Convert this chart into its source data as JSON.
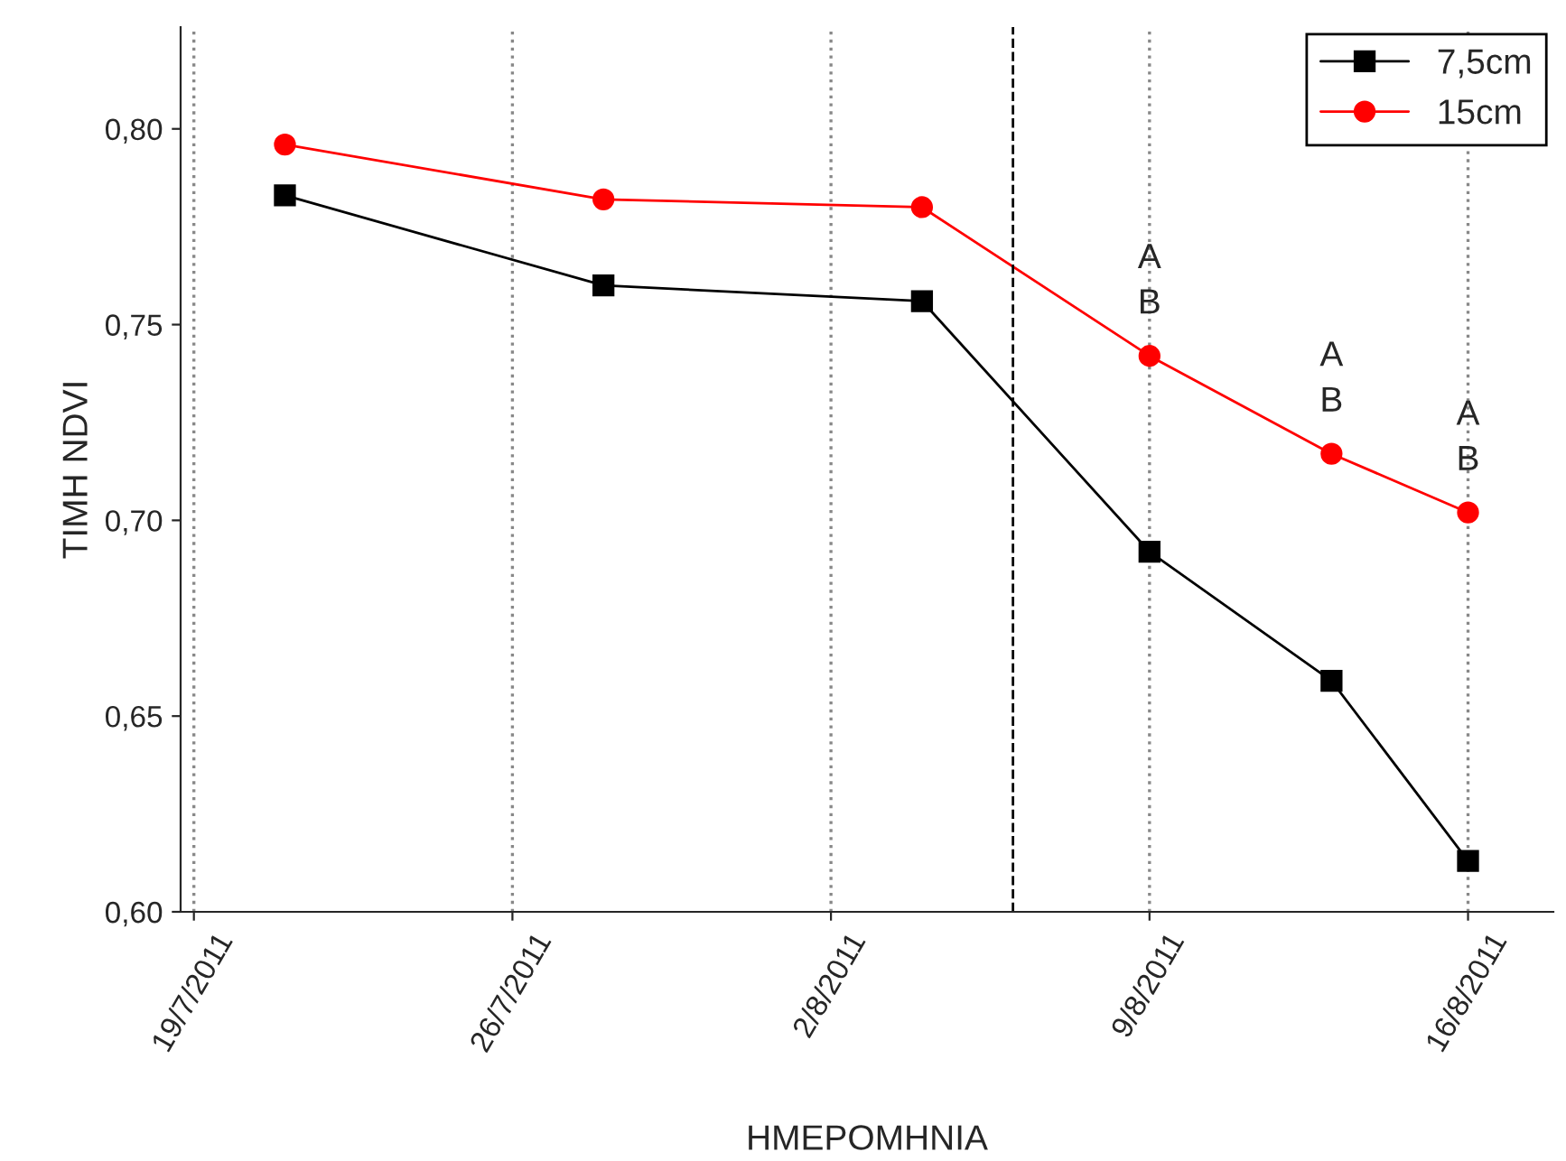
{
  "chart_data": {
    "type": "line",
    "xlabel": "ΗΜΕΡΟΜΗΝΙΑ",
    "ylabel": "ΤΙΜΗ NDVI",
    "x": [
      "2011-07-21",
      "2011-07-28",
      "2011-08-04",
      "2011-08-09",
      "2011-08-13",
      "2011-08-16"
    ],
    "series": [
      {
        "name": "7,5cm",
        "color": "#000000",
        "marker": "square",
        "values": [
          0.783,
          0.76,
          0.756,
          0.692,
          0.659,
          0.613
        ]
      },
      {
        "name": "15cm",
        "color": "#ff0000",
        "marker": "circle",
        "values": [
          0.796,
          0.782,
          0.78,
          0.742,
          0.717,
          0.702
        ]
      }
    ],
    "xlim": [
      "2011-07-18T17:00",
      "2011-08-17T21:00"
    ],
    "xticks": [
      {
        "value": "2011-07-19",
        "label": "19/7/2011"
      },
      {
        "value": "2011-07-26",
        "label": "26/7/2011"
      },
      {
        "value": "2011-08-02",
        "label": "2/8/2011"
      },
      {
        "value": "2011-08-09",
        "label": "9/8/2011"
      },
      {
        "value": "2011-08-16",
        "label": "16/8/2011"
      }
    ],
    "ylim": [
      0.6,
      0.826
    ],
    "yticks": [
      {
        "value": 0.6,
        "label": "0,60"
      },
      {
        "value": 0.65,
        "label": "0,65"
      },
      {
        "value": 0.7,
        "label": "0,70"
      },
      {
        "value": 0.75,
        "label": "0,75"
      },
      {
        "value": 0.8,
        "label": "0,80"
      }
    ],
    "ref_lines": [
      {
        "axis": "x",
        "value": "2011-08-06",
        "color": "#000000",
        "line_style": "dashed"
      }
    ],
    "annotations": [
      "A\nB",
      "A\nB",
      "A\nB"
    ],
    "grid": "x",
    "legend": "top right",
    "line_style": "solid"
  }
}
